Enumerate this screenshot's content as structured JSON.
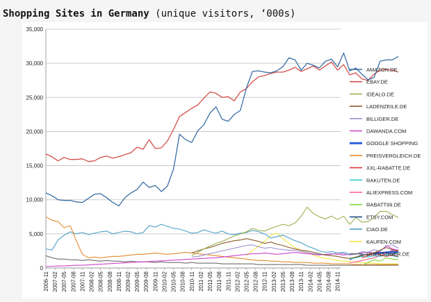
{
  "header": {
    "title_bold": "Shopping Sites in Germany",
    "title_rest": " (unique visitors, ‘000s)"
  },
  "chart_data": {
    "type": "line",
    "title": "Shopping Sites in Germany (unique visitors, ‘000s)",
    "xlabel": "",
    "ylabel": "",
    "ylim": [
      0,
      35000
    ],
    "yticks": [
      "0",
      "5,000",
      "10,000",
      "15,000",
      "20,000",
      "25,000",
      "30,000",
      "35,000"
    ],
    "x_tick_labels": [
      "2006-11",
      "2007-02",
      "2007-05",
      "2007-08",
      "2007-11",
      "2008-02",
      "2008-05",
      "2008-08",
      "2008-11",
      "2009-02",
      "2009-05",
      "2009-08",
      "2009-11",
      "2010-02",
      "2010-05",
      "2010-08",
      "2010-11",
      "2011-02",
      "2011-05",
      "2011-08",
      "2011-11",
      "2012-02",
      "2012-05",
      "2012-08",
      "2012-11",
      "2013-02",
      "2013-05",
      "2013-08",
      "2013-11",
      "2014-02",
      "2014-05",
      "2014-08",
      "2014-11"
    ],
    "x_start": "2006-11",
    "x_end": "2014-12",
    "grid": true,
    "legend_position": "right",
    "series": [
      {
        "name": "AMAZON.DE",
        "color": "#3a6ea5",
        "start": "2006-11",
        "stride": 2,
        "values": [
          11000,
          10600,
          10000,
          9900,
          9900,
          9700,
          9600,
          10200,
          10800,
          10900,
          10300,
          9600,
          9100,
          10300,
          11000,
          11500,
          12600,
          11800,
          12100,
          11200,
          12000,
          14500,
          19600,
          18800,
          18400,
          20100,
          21000,
          22700,
          23600,
          21800,
          21500,
          22500,
          23100,
          26400,
          28800,
          28900,
          28700,
          28600,
          28900,
          29500,
          30800,
          30500,
          29000,
          30000,
          29700,
          29300,
          30300,
          30600,
          29500,
          31500,
          28900,
          29300,
          28400,
          27600,
          27900,
          30300,
          30500,
          30500,
          31000
        ]
      },
      {
        "name": "EBAY.DE",
        "color": "#d2504b",
        "start": "2006-11",
        "stride": 2,
        "values": [
          16700,
          16300,
          15700,
          16200,
          15900,
          15900,
          16000,
          15600,
          15700,
          16200,
          16400,
          16100,
          16300,
          16600,
          16900,
          17700,
          17400,
          18800,
          17500,
          17600,
          18600,
          20300,
          22200,
          22800,
          23400,
          23900,
          24900,
          25800,
          25600,
          25000,
          25100,
          24500,
          25800,
          26300,
          27300,
          28000,
          28200,
          28500,
          28700,
          28700,
          29000,
          29400,
          28800,
          29200,
          29600,
          29000,
          29600,
          30200,
          29000,
          29800,
          28300,
          28600,
          27700,
          27500,
          28400,
          29000,
          29100,
          29000,
          28700
        ]
      },
      {
        "name": "IDEALO.DE",
        "color": "#97b04d",
        "start": "2006-11",
        "stride": 2,
        "values": [
          null,
          null,
          null,
          null,
          null,
          null,
          null,
          null,
          null,
          null,
          null,
          null,
          null,
          null,
          null,
          null,
          null,
          null,
          null,
          null,
          null,
          null,
          null,
          null,
          1800,
          2300,
          2800,
          3200,
          3600,
          3900,
          4300,
          4700,
          5000,
          5300,
          5800,
          5500,
          5400,
          5800,
          6100,
          6400,
          6200,
          6600,
          7600,
          8900,
          8000,
          7500,
          7200,
          7600,
          7100,
          7600,
          6400,
          7400,
          6700,
          6800,
          7400,
          8300,
          8300,
          7800,
          7400
        ]
      },
      {
        "name": "LADENZEILE.DE",
        "color": "#8b5a2b",
        "start": "2006-11",
        "stride": 2,
        "values": [
          null,
          null,
          null,
          null,
          null,
          null,
          null,
          null,
          null,
          null,
          null,
          null,
          null,
          null,
          null,
          null,
          null,
          null,
          null,
          null,
          null,
          null,
          null,
          null,
          2200,
          2500,
          2800,
          3000,
          3300,
          3600,
          3800,
          4000,
          4100,
          4300,
          4100,
          3900,
          3600,
          3800,
          3500,
          3300,
          3000,
          2800,
          2600,
          2500,
          2300,
          2100,
          1900,
          1800,
          1700,
          1500,
          1400,
          1600,
          1800,
          2000,
          2200,
          2600,
          3000,
          2700,
          2500
        ]
      },
      {
        "name": "BILLIGER.DE",
        "color": "#9a8fce",
        "start": "2006-11",
        "stride": 2,
        "values": [
          null,
          null,
          null,
          null,
          null,
          null,
          null,
          null,
          null,
          null,
          null,
          null,
          null,
          null,
          null,
          null,
          null,
          null,
          null,
          null,
          null,
          null,
          null,
          null,
          1600,
          1700,
          1900,
          2100,
          2300,
          2500,
          2700,
          2900,
          3100,
          3300,
          3400,
          3100,
          2900,
          3000,
          2800,
          2700,
          2600,
          2600,
          2400,
          2300,
          2100,
          2000,
          1900,
          2000,
          2200,
          2100,
          1900,
          2000,
          2400,
          2300,
          2700,
          2400,
          3200,
          3400,
          2900
        ]
      },
      {
        "name": "DAWANDA.COM",
        "color": "#cc44cc",
        "start": "2006-11",
        "stride": 2,
        "values": [
          200,
          250,
          300,
          300,
          350,
          400,
          400,
          450,
          500,
          550,
          600,
          650,
          700,
          750,
          800,
          850,
          900,
          950,
          1000,
          1050,
          1100,
          1150,
          1200,
          1250,
          1300,
          1350,
          1400,
          1450,
          1500,
          1600,
          1700,
          1800,
          1900,
          2000,
          2100,
          2100,
          2200,
          2100,
          2000,
          2100,
          2200,
          2300,
          2200,
          2100,
          2000,
          1900,
          2000,
          2100,
          2000,
          1900,
          2000,
          2100,
          2200,
          2300,
          2200,
          2400,
          3300,
          2800,
          2600
        ]
      },
      {
        "name": "GOOGLE SHOPPING",
        "color": "#2a5fd9",
        "start": "2006-11",
        "stride": 2,
        "values": [
          null,
          null,
          null,
          null,
          null,
          null,
          null,
          null,
          null,
          null,
          null,
          null,
          null,
          null,
          null,
          null,
          null,
          null,
          null,
          null,
          null,
          null,
          null,
          null,
          null,
          null,
          null,
          null,
          null,
          null,
          null,
          null,
          null,
          null,
          null,
          null,
          null,
          null,
          null,
          null,
          null,
          null,
          null,
          null,
          null,
          null,
          null,
          null,
          null,
          null,
          null,
          null,
          null,
          null,
          2000,
          2200,
          2300,
          2400,
          2300
        ]
      },
      {
        "name": "PREISVERGLEICH.DE",
        "color": "#e48a2a",
        "start": "2006-11",
        "stride": 2,
        "values": [
          7500,
          7000,
          6800,
          5900,
          6200,
          4000,
          2000,
          1500,
          1600,
          1500,
          1600,
          1700,
          1700,
          1800,
          1900,
          2000,
          2000,
          2100,
          2200,
          2100,
          2000,
          2100,
          2200,
          2300,
          2200,
          2100,
          2000,
          1900,
          1800,
          1700,
          1600,
          1500,
          1400,
          1300,
          1200,
          1100,
          1100,
          1000,
          1000,
          900,
          900,
          800,
          800,
          800,
          700,
          700,
          700,
          600,
          600,
          600,
          600,
          500,
          500,
          500,
          500,
          500,
          500,
          500,
          500
        ]
      },
      {
        "name": "XXL-RABATTE.DE",
        "color": "#d8383a",
        "start": "2006-11",
        "stride": 2,
        "values": [
          null,
          null,
          null,
          null,
          null,
          null,
          null,
          null,
          null,
          null,
          null,
          null,
          null,
          null,
          null,
          null,
          null,
          null,
          null,
          null,
          null,
          null,
          null,
          null,
          null,
          null,
          null,
          null,
          null,
          null,
          null,
          null,
          null,
          null,
          null,
          null,
          null,
          null,
          null,
          null,
          null,
          null,
          null,
          null,
          null,
          null,
          null,
          null,
          null,
          null,
          null,
          null,
          1500,
          1800,
          2100,
          1900,
          1700,
          1900,
          1700
        ]
      },
      {
        "name": "RAKUTEN.DE",
        "color": "#33cccc",
        "start": "2006-11",
        "stride": 2,
        "values": [
          null,
          null,
          null,
          null,
          null,
          null,
          null,
          null,
          null,
          null,
          null,
          null,
          null,
          null,
          null,
          null,
          null,
          null,
          null,
          null,
          null,
          null,
          null,
          null,
          null,
          null,
          null,
          null,
          null,
          null,
          null,
          null,
          null,
          null,
          null,
          null,
          null,
          null,
          null,
          null,
          null,
          null,
          null,
          null,
          null,
          null,
          null,
          null,
          null,
          null,
          1300,
          1500,
          1700,
          1600,
          1800,
          1700,
          1900,
          1800,
          1600
        ]
      },
      {
        "name": "ALIEXPRESS.COM",
        "color": "#ff5a88",
        "start": "2006-11",
        "stride": 2,
        "values": [
          null,
          null,
          null,
          null,
          null,
          null,
          null,
          null,
          null,
          null,
          null,
          null,
          null,
          null,
          null,
          null,
          null,
          null,
          null,
          null,
          null,
          null,
          null,
          null,
          null,
          null,
          null,
          null,
          null,
          null,
          null,
          null,
          null,
          null,
          null,
          null,
          null,
          null,
          null,
          null,
          null,
          null,
          null,
          null,
          null,
          null,
          null,
          null,
          null,
          null,
          800,
          900,
          1100,
          1300,
          1500,
          1800,
          2200,
          2600,
          2400
        ]
      },
      {
        "name": "RABATT99.DE",
        "color": "#7fd43a",
        "start": "2006-11",
        "stride": 2,
        "values": [
          null,
          null,
          null,
          null,
          null,
          null,
          null,
          null,
          null,
          null,
          null,
          null,
          null,
          null,
          null,
          null,
          null,
          null,
          null,
          null,
          null,
          null,
          null,
          null,
          null,
          null,
          null,
          null,
          null,
          null,
          null,
          null,
          null,
          null,
          null,
          null,
          null,
          null,
          null,
          null,
          null,
          null,
          null,
          null,
          null,
          null,
          null,
          null,
          null,
          null,
          null,
          null,
          400,
          800,
          1200,
          1000,
          1500,
          1300,
          1200
        ]
      },
      {
        "name": "ETSY.COM",
        "color": "#1f4e8c",
        "start": "2006-11",
        "stride": 2,
        "values": [
          null,
          null,
          null,
          null,
          null,
          null,
          null,
          null,
          null,
          null,
          null,
          null,
          null,
          null,
          null,
          null,
          null,
          null,
          null,
          null,
          null,
          null,
          null,
          null,
          null,
          null,
          null,
          null,
          null,
          null,
          null,
          null,
          null,
          null,
          null,
          null,
          null,
          null,
          null,
          null,
          null,
          null,
          null,
          null,
          null,
          null,
          null,
          null,
          null,
          null,
          1200,
          1600,
          1900,
          2000,
          2100,
          2300,
          2200,
          2100,
          2300
        ]
      },
      {
        "name": "CIAO.DE",
        "color": "#4aa0c8",
        "start": "2006-11",
        "stride": 2,
        "values": [
          2800,
          2600,
          4100,
          4800,
          5300,
          5000,
          5200,
          4900,
          5100,
          5300,
          5400,
          5000,
          5200,
          5400,
          5300,
          5000,
          5200,
          6200,
          6000,
          6400,
          6100,
          5800,
          5700,
          5400,
          5100,
          5200,
          5600,
          5300,
          5100,
          5400,
          5000,
          4900,
          5100,
          5200,
          5500,
          5300,
          5000,
          4400,
          4600,
          4800,
          4400,
          4000,
          3700,
          3200,
          2900,
          2500,
          2300,
          2400,
          2200,
          2300,
          2000,
          2100,
          2000,
          1900,
          2100,
          2200,
          2000,
          2100,
          2000
        ]
      },
      {
        "name": "KAUFEN.COM",
        "color": "#f2e640",
        "start": "2006-11",
        "stride": 2,
        "values": [
          null,
          null,
          null,
          null,
          null,
          null,
          null,
          null,
          null,
          null,
          null,
          null,
          null,
          null,
          null,
          null,
          null,
          null,
          null,
          null,
          null,
          null,
          null,
          null,
          null,
          null,
          null,
          null,
          null,
          null,
          null,
          null,
          null,
          1800,
          2600,
          3200,
          3900,
          4800,
          5100,
          4300,
          3600,
          3000,
          2600,
          2200,
          1900,
          1600,
          1400,
          1300,
          1100,
          1000,
          900,
          800,
          800,
          700,
          700,
          600,
          600,
          600,
          600
        ]
      },
      {
        "name": "GUENSTIGER.DE",
        "color": "#6e6e6e",
        "start": "2006-11",
        "stride": 2,
        "values": [
          1800,
          1500,
          1300,
          1300,
          1200,
          1200,
          1100,
          1200,
          1100,
          1000,
          1100,
          1000,
          1000,
          900,
          1000,
          900,
          900,
          900,
          800,
          900,
          800,
          800,
          800,
          700,
          800,
          700,
          700,
          700,
          700,
          600,
          600,
          600,
          600,
          600,
          600,
          500,
          500,
          500,
          500,
          500,
          500,
          500,
          500,
          400,
          400,
          400,
          400,
          400,
          400,
          400,
          400,
          400,
          400,
          400,
          400,
          400,
          400,
          400,
          400
        ]
      }
    ]
  }
}
